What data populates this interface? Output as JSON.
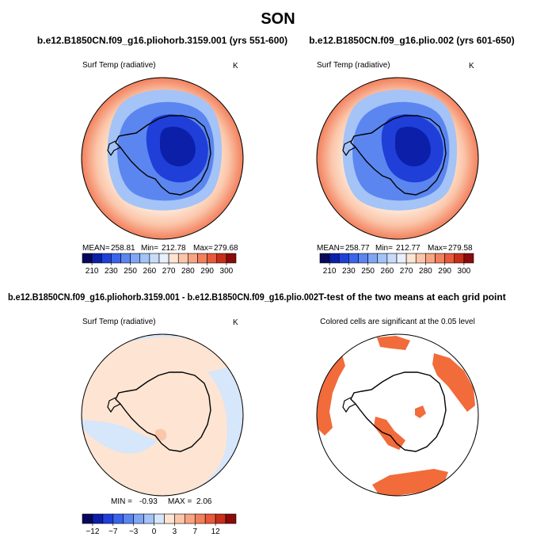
{
  "title": "SON",
  "panels": [
    {
      "title": "b.e12.B1850CN.f09_g16.pliohorb.3159.001 (yrs 551-600)",
      "left_label": "Surf Temp (radiative)",
      "right_label": "K",
      "stats": {
        "mean_label": "MEAN=",
        "mean": "258.81",
        "min_label": "Min=",
        "min": "212.78",
        "max_label": "Max=",
        "max": "279.68"
      }
    },
    {
      "title": "b.e12.B1850CN.f09_g16.plio.002 (yrs 601-650)",
      "left_label": "Surf Temp (radiative)",
      "right_label": "K",
      "stats": {
        "mean_label": "MEAN=",
        "mean": "258.77",
        "min_label": "Min=",
        "min": "212.77",
        "max_label": "Max=",
        "max": "279.58"
      }
    },
    {
      "title": "b.e12.B1850CN.f09_g16.pliohorb.3159.001 - b.e12.B1850CN.f09_g16.plio.002",
      "left_label": "Surf Temp (radiative)",
      "right_label": "K",
      "stats": {
        "min_label": "MIN =",
        "min": "-0.93",
        "max_label": "MAX =",
        "max": "2.06"
      }
    },
    {
      "title": "T-test of the two means at each grid point",
      "left_label": "Colored cells are significant at the 0.05 level"
    }
  ],
  "chart_data": [
    {
      "type": "heatmap",
      "projection": "south-polar-stereographic",
      "variable": "Surf Temp (radiative)",
      "units": "K",
      "colorbar_levels": [
        200,
        210,
        220,
        230,
        240,
        250,
        255,
        260,
        265,
        270,
        275,
        280,
        285,
        290,
        295,
        300,
        310
      ],
      "colorbar_tick_labels": [
        "210",
        "230",
        "250",
        "260",
        "270",
        "280",
        "290",
        "300"
      ],
      "colorbar_colors": [
        "#08075c",
        "#0c1fa8",
        "#1f3fd8",
        "#3a64ec",
        "#5b86f0",
        "#7fa6f4",
        "#a4c3f7",
        "#c8dcfa",
        "#e8f0fc",
        "#fde4d3",
        "#fbc6aa",
        "#f8a483",
        "#f2805d",
        "#e85a3a",
        "#c92e1a",
        "#8b0a0a"
      ],
      "mean": 258.81,
      "min": 212.78,
      "max": 279.68
    },
    {
      "type": "heatmap",
      "projection": "south-polar-stereographic",
      "variable": "Surf Temp (radiative)",
      "units": "K",
      "colorbar_levels": [
        200,
        210,
        220,
        230,
        240,
        250,
        255,
        260,
        265,
        270,
        275,
        280,
        285,
        290,
        295,
        300,
        310
      ],
      "colorbar_tick_labels": [
        "210",
        "230",
        "250",
        "260",
        "270",
        "280",
        "290",
        "300"
      ],
      "colorbar_colors": [
        "#08075c",
        "#0c1fa8",
        "#1f3fd8",
        "#3a64ec",
        "#5b86f0",
        "#7fa6f4",
        "#a4c3f7",
        "#c8dcfa",
        "#e8f0fc",
        "#fde4d3",
        "#fbc6aa",
        "#f8a483",
        "#f2805d",
        "#e85a3a",
        "#c92e1a",
        "#8b0a0a"
      ],
      "mean": 258.77,
      "min": 212.77,
      "max": 279.58
    },
    {
      "type": "heatmap",
      "projection": "south-polar-stereographic",
      "variable": "Surf Temp (radiative)",
      "units": "K",
      "colorbar_levels": [
        -15,
        -12,
        -10,
        -7,
        -5,
        -3,
        -1,
        0,
        1,
        3,
        5,
        7,
        10,
        12,
        15
      ],
      "colorbar_tick_labels": [
        "−12",
        "−7",
        "−3",
        "0",
        "3",
        "7",
        "12"
      ],
      "colorbar_colors": [
        "#08075c",
        "#0c1fa8",
        "#1f3fd8",
        "#3a64ec",
        "#5b86f0",
        "#7fa6f4",
        "#a4c3f7",
        "#d6e6fb",
        "#fde4d3",
        "#fbc6aa",
        "#f8a483",
        "#f2805d",
        "#e85a3a",
        "#c92e1a",
        "#8b0a0a"
      ],
      "min": -0.93,
      "max": 2.06
    },
    {
      "type": "heatmap",
      "projection": "south-polar-stereographic",
      "significance_level": 0.05,
      "significant_color": "#f26b3a"
    }
  ]
}
